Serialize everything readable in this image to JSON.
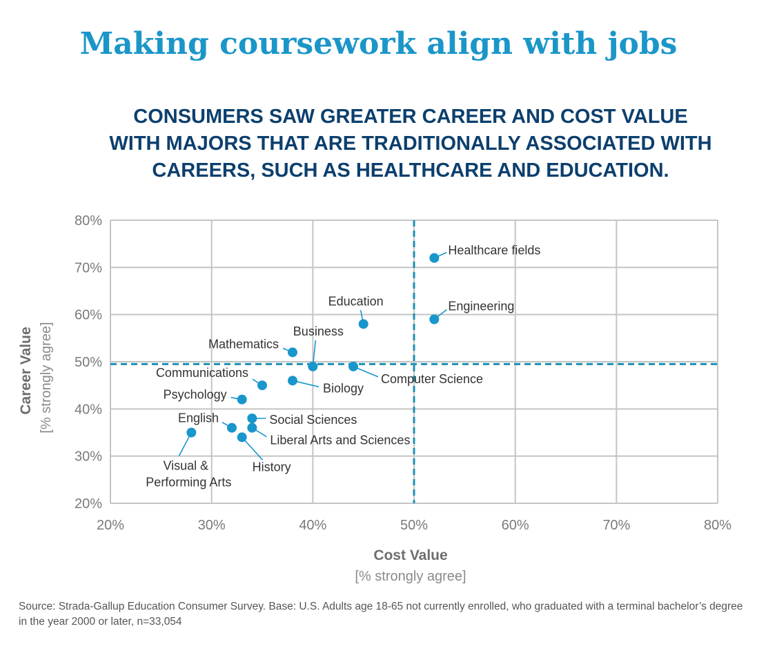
{
  "title": "Making coursework align with jobs",
  "subtitle_lines": [
    "CONSUMERS SAW GREATER CAREER AND COST VALUE",
    "WITH MAJORS THAT ARE TRADITIONALLY ASSOCIATED WITH",
    "CAREERS, SUCH AS HEALTHCARE AND EDUCATION."
  ],
  "source_note": "Source: Strada-Gallup Education Consumer Survey. Base: U.S. Adults age 18-65 not currently enrolled,  who graduated with a terminal bachelor’s degree in the year 2000 or later, n=33,054",
  "colors": {
    "title": "#1b96c8",
    "subtitle": "#0c3f6d",
    "point": "#1996cb",
    "leader": "#1996cb",
    "grid": "#c4c4c4",
    "reference_line": "#1b8fb5"
  },
  "chart_data": {
    "type": "scatter",
    "xlabel": "Cost Value",
    "xlabel_sub": "[% strongly agree]",
    "ylabel": "Career Value",
    "ylabel_sub": "[% strongly agree]",
    "xlim": [
      20,
      80
    ],
    "ylim": [
      20,
      80
    ],
    "x_ticks": [
      "20%",
      "30%",
      "40%",
      "50%",
      "60%",
      "70%",
      "80%"
    ],
    "y_ticks": [
      "20%",
      "30%",
      "40%",
      "50%",
      "60%",
      "70%",
      "80%"
    ],
    "grid": true,
    "reference_lines": {
      "x": 50,
      "y": 49.5,
      "style": "dashed"
    },
    "points": [
      {
        "label": "Healthcare fields",
        "x": 52,
        "y": 72
      },
      {
        "label": "Engineering",
        "x": 52,
        "y": 59
      },
      {
        "label": "Education",
        "x": 45,
        "y": 58
      },
      {
        "label": "Mathematics",
        "x": 38,
        "y": 52
      },
      {
        "label": "Business",
        "x": 40,
        "y": 49
      },
      {
        "label": "Computer Science",
        "x": 44,
        "y": 49
      },
      {
        "label": "Biology",
        "x": 38,
        "y": 46
      },
      {
        "label": "Communications",
        "x": 35,
        "y": 45
      },
      {
        "label": "Psychology",
        "x": 33,
        "y": 42
      },
      {
        "label": "Social Sciences",
        "x": 34,
        "y": 38
      },
      {
        "label": "English",
        "x": 32,
        "y": 36
      },
      {
        "label": "Liberal Arts and Sciences",
        "x": 34,
        "y": 36
      },
      {
        "label": "History",
        "x": 33,
        "y": 34
      },
      {
        "label": "Visual & Performing Arts",
        "x": 28,
        "y": 35
      }
    ]
  }
}
